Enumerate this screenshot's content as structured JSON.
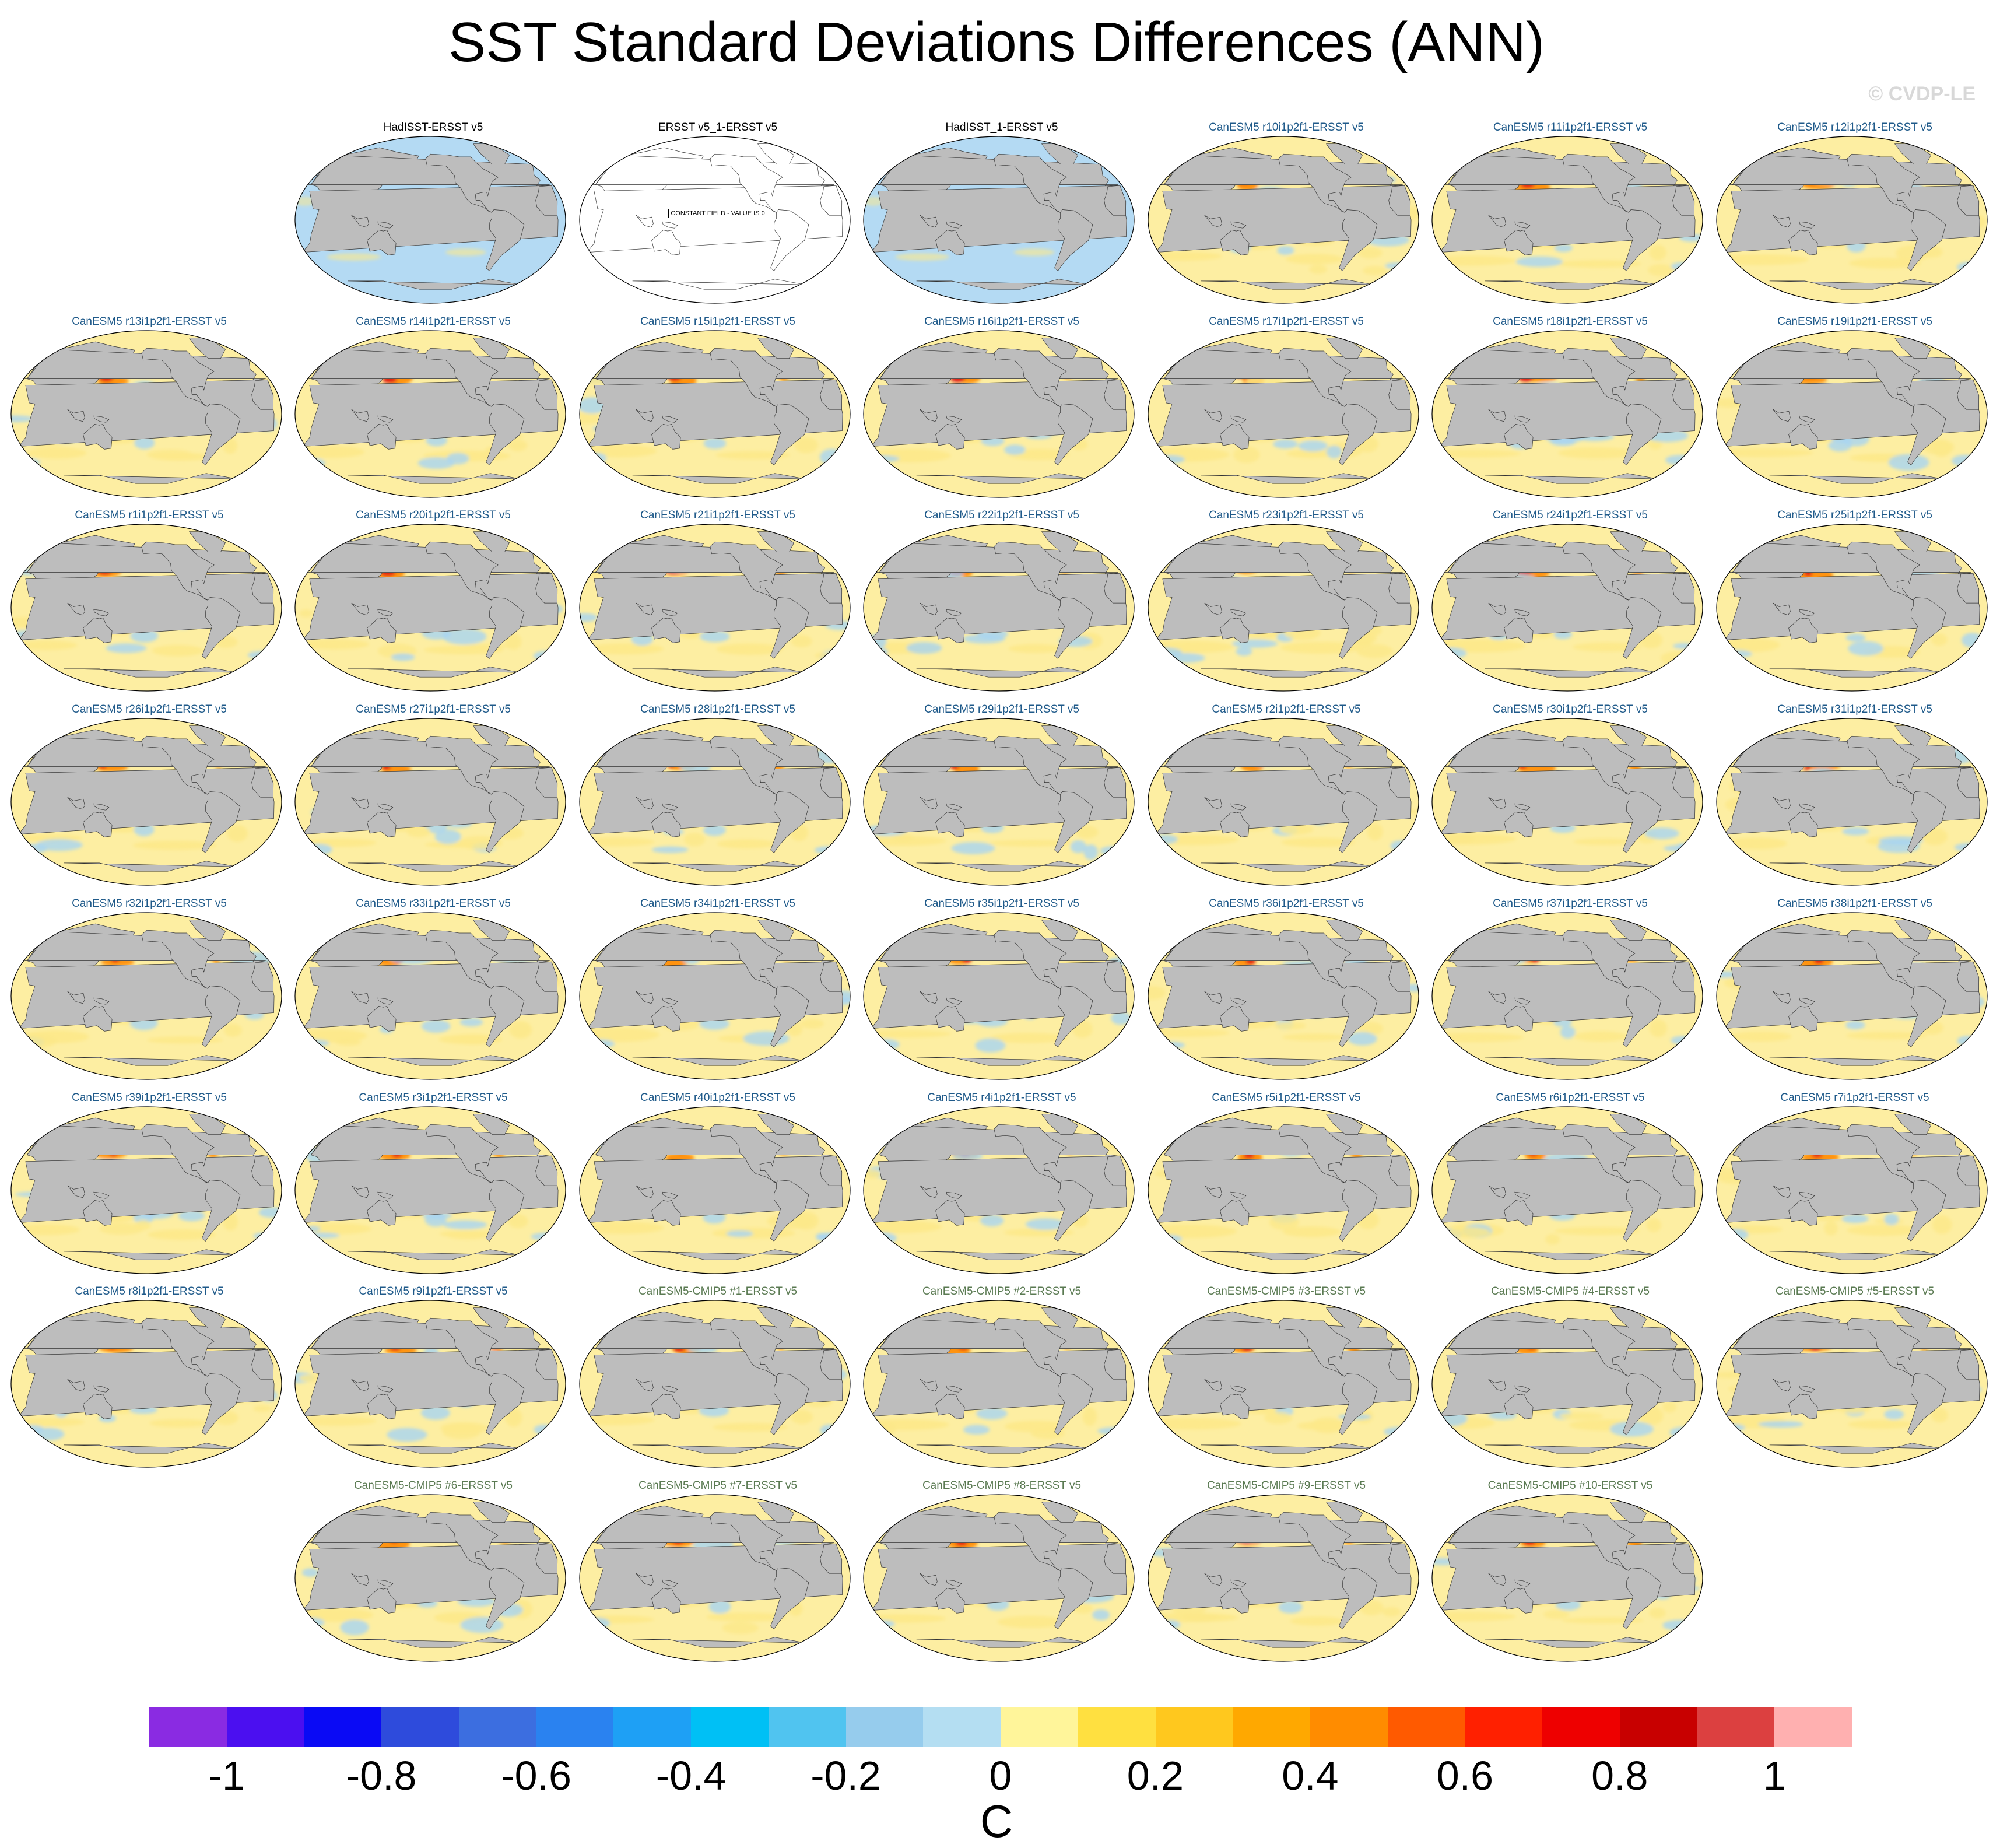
{
  "title": "SST Standard Deviations Differences (ANN)",
  "watermark": "© CVDP-LE",
  "panels": [
    {
      "label": "HadISST-ERSST v5",
      "kind": "obs",
      "constant": false
    },
    {
      "label": "ERSST v5_1-ERSST v5",
      "kind": "obs",
      "constant": true,
      "note": "CONSTANT FIELD - VALUE IS 0"
    },
    {
      "label": "HadISST_1-ERSST v5",
      "kind": "obs",
      "constant": false
    },
    {
      "label": "CanESM5 r10i1p2f1-ERSST v5",
      "kind": "le"
    },
    {
      "label": "CanESM5 r11i1p2f1-ERSST v5",
      "kind": "le"
    },
    {
      "label": "CanESM5 r12i1p2f1-ERSST v5",
      "kind": "le"
    },
    {
      "label": "CanESM5 r13i1p2f1-ERSST v5",
      "kind": "le"
    },
    {
      "label": "CanESM5 r14i1p2f1-ERSST v5",
      "kind": "le"
    },
    {
      "label": "CanESM5 r15i1p2f1-ERSST v5",
      "kind": "le"
    },
    {
      "label": "CanESM5 r16i1p2f1-ERSST v5",
      "kind": "le"
    },
    {
      "label": "CanESM5 r17i1p2f1-ERSST v5",
      "kind": "le"
    },
    {
      "label": "CanESM5 r18i1p2f1-ERSST v5",
      "kind": "le"
    },
    {
      "label": "CanESM5 r19i1p2f1-ERSST v5",
      "kind": "le"
    },
    {
      "label": "CanESM5 r1i1p2f1-ERSST v5",
      "kind": "le"
    },
    {
      "label": "CanESM5 r20i1p2f1-ERSST v5",
      "kind": "le"
    },
    {
      "label": "CanESM5 r21i1p2f1-ERSST v5",
      "kind": "le"
    },
    {
      "label": "CanESM5 r22i1p2f1-ERSST v5",
      "kind": "le"
    },
    {
      "label": "CanESM5 r23i1p2f1-ERSST v5",
      "kind": "le"
    },
    {
      "label": "CanESM5 r24i1p2f1-ERSST v5",
      "kind": "le"
    },
    {
      "label": "CanESM5 r25i1p2f1-ERSST v5",
      "kind": "le"
    },
    {
      "label": "CanESM5 r26i1p2f1-ERSST v5",
      "kind": "le"
    },
    {
      "label": "CanESM5 r27i1p2f1-ERSST v5",
      "kind": "le"
    },
    {
      "label": "CanESM5 r28i1p2f1-ERSST v5",
      "kind": "le"
    },
    {
      "label": "CanESM5 r29i1p2f1-ERSST v5",
      "kind": "le"
    },
    {
      "label": "CanESM5 r2i1p2f1-ERSST v5",
      "kind": "le"
    },
    {
      "label": "CanESM5 r30i1p2f1-ERSST v5",
      "kind": "le"
    },
    {
      "label": "CanESM5 r31i1p2f1-ERSST v5",
      "kind": "le"
    },
    {
      "label": "CanESM5 r32i1p2f1-ERSST v5",
      "kind": "le"
    },
    {
      "label": "CanESM5 r33i1p2f1-ERSST v5",
      "kind": "le"
    },
    {
      "label": "CanESM5 r34i1p2f1-ERSST v5",
      "kind": "le"
    },
    {
      "label": "CanESM5 r35i1p2f1-ERSST v5",
      "kind": "le"
    },
    {
      "label": "CanESM5 r36i1p2f1-ERSST v5",
      "kind": "le"
    },
    {
      "label": "CanESM5 r37i1p2f1-ERSST v5",
      "kind": "le"
    },
    {
      "label": "CanESM5 r38i1p2f1-ERSST v5",
      "kind": "le"
    },
    {
      "label": "CanESM5 r39i1p2f1-ERSST v5",
      "kind": "le"
    },
    {
      "label": "CanESM5 r3i1p2f1-ERSST v5",
      "kind": "le"
    },
    {
      "label": "CanESM5 r40i1p2f1-ERSST v5",
      "kind": "le"
    },
    {
      "label": "CanESM5 r4i1p2f1-ERSST v5",
      "kind": "le"
    },
    {
      "label": "CanESM5 r5i1p2f1-ERSST v5",
      "kind": "le"
    },
    {
      "label": "CanESM5 r6i1p2f1-ERSST v5",
      "kind": "le"
    },
    {
      "label": "CanESM5 r7i1p2f1-ERSST v5",
      "kind": "le"
    },
    {
      "label": "CanESM5 r8i1p2f1-ERSST v5",
      "kind": "le"
    },
    {
      "label": "CanESM5 r9i1p2f1-ERSST v5",
      "kind": "le"
    },
    {
      "label": "CanESM5-CMIP5 #1-ERSST v5",
      "kind": "cmip"
    },
    {
      "label": "CanESM5-CMIP5 #2-ERSST v5",
      "kind": "cmip"
    },
    {
      "label": "CanESM5-CMIP5 #3-ERSST v5",
      "kind": "cmip"
    },
    {
      "label": "CanESM5-CMIP5 #4-ERSST v5",
      "kind": "cmip"
    },
    {
      "label": "CanESM5-CMIP5 #5-ERSST v5",
      "kind": "cmip"
    },
    {
      "label": "CanESM5-CMIP5 #6-ERSST v5",
      "kind": "cmip"
    },
    {
      "label": "CanESM5-CMIP5 #7-ERSST v5",
      "kind": "cmip"
    },
    {
      "label": "CanESM5-CMIP5 #8-ERSST v5",
      "kind": "cmip"
    },
    {
      "label": "CanESM5-CMIP5 #9-ERSST v5",
      "kind": "cmip"
    },
    {
      "label": "CanESM5-CMIP5 #10-ERSST v5",
      "kind": "cmip"
    }
  ],
  "colorbar": {
    "colors": [
      "#8a2be2",
      "#4b0ff0",
      "#0a0af5",
      "#2e4bdc",
      "#3c6ee0",
      "#2a82f0",
      "#1ea0f5",
      "#00c0f5",
      "#50c4f0",
      "#96cced",
      "#b4def2",
      "#fff59a",
      "#ffe040",
      "#ffc81e",
      "#ffa800",
      "#ff8c00",
      "#ff5a00",
      "#ff2000",
      "#ee0000",
      "#c80000",
      "#dc4040",
      "#ffb0b0"
    ],
    "tick_labels": [
      "-1",
      "-0.8",
      "-0.6",
      "-0.4",
      "-0.2",
      "0",
      "0.2",
      "0.4",
      "0.6",
      "0.8",
      "1"
    ],
    "tick_values": [
      -1,
      -0.8,
      -0.6,
      -0.4,
      -0.2,
      0,
      0.2,
      0.4,
      0.6,
      0.8,
      1
    ],
    "range": [
      -1.1,
      1.1
    ],
    "units": "C"
  },
  "colors": {
    "land": "#bdbdbd",
    "warm": "#fde98a",
    "cool": "#a8d4f2",
    "hot": "#ff8a00",
    "very_hot": "#e01010",
    "cold": "#3d8fe8"
  }
}
